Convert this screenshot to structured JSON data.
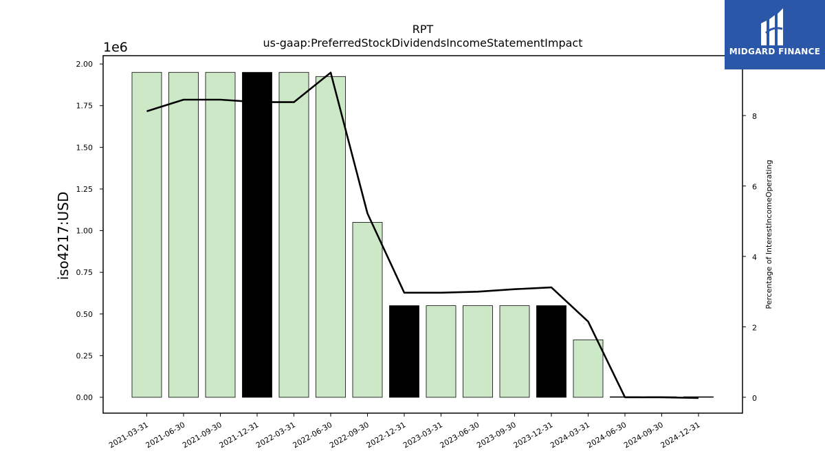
{
  "header": {
    "title_line1": "RPT",
    "title_line2": "us-gaap:PreferredStockDividendsIncomeStatementImpact"
  },
  "brand": {
    "name": "MIDGARD FINANCE",
    "color": "#2a57a8"
  },
  "chart_data": {
    "type": "bar",
    "title": "RPT",
    "subtitle": "us-gaap:PreferredStockDividendsIncomeStatementImpact",
    "ylabel": "iso4217:USD",
    "y_multiplier": "1e6",
    "y2label": "Percentage of InterestIncomeOperating",
    "categories": [
      "2021-03-31",
      "2021-06-30",
      "2021-09-30",
      "2021-12-31",
      "2022-03-31",
      "2022-06-30",
      "2022-09-30",
      "2022-12-31",
      "2023-03-31",
      "2023-06-30",
      "2023-09-30",
      "2023-12-31",
      "2024-03-31",
      "2024-06-30",
      "2024-09-30",
      "2024-12-31"
    ],
    "ylim": [
      -95000,
      2050000
    ],
    "yticks": [
      0,
      250000,
      500000,
      750000,
      1000000,
      1250000,
      1500000,
      1750000,
      2000000
    ],
    "ytick_labels": [
      "0.00",
      "0.25",
      "0.50",
      "0.75",
      "1.00",
      "1.25",
      "1.50",
      "1.75",
      "2.00"
    ],
    "y2lim": [
      -0.45,
      9.7
    ],
    "y2ticks": [
      0,
      2,
      4,
      6,
      8
    ],
    "y2tick_labels": [
      "0",
      "2",
      "4",
      "6",
      "8"
    ],
    "series": [
      {
        "kind": "bar",
        "values": [
          1950000,
          1950000,
          1950000,
          1950000,
          1950000,
          1925000,
          1050000,
          550000,
          550000,
          550000,
          550000,
          550000,
          345000,
          0,
          0,
          0
        ],
        "highlight": [
          false,
          false,
          false,
          true,
          false,
          false,
          false,
          true,
          false,
          false,
          false,
          true,
          false,
          false,
          false,
          false
        ]
      },
      {
        "kind": "line",
        "axis": "right",
        "values": [
          8.12,
          8.45,
          8.45,
          8.38,
          8.38,
          9.22,
          5.22,
          2.97,
          2.97,
          3.0,
          3.07,
          3.12,
          2.15,
          0.0,
          0.0,
          -0.02
        ]
      }
    ],
    "colors": {
      "bar": "#cde8c7",
      "bar_highlight": "#000000",
      "bar_edge": "#000000",
      "line": "#000000"
    },
    "grid": false,
    "legend": "none"
  }
}
